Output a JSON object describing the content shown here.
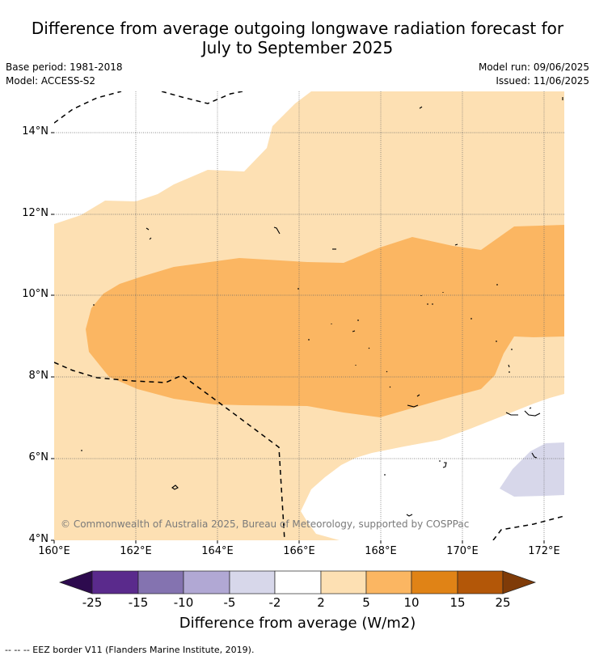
{
  "title": {
    "line1": "Difference from average outgoing longwave radiation forecast for",
    "line2": "July to September 2025"
  },
  "meta": {
    "base_period": "Base period: 1981-2018",
    "model": "Model: ACCESS-S2",
    "model_run": "Model run: 09/06/2025",
    "issued": "Issued: 11/06/2025"
  },
  "map": {
    "latitude_labels": [
      "14°N",
      "12°N",
      "10°N",
      "8°N",
      "6°N",
      "4°N"
    ],
    "longitude_labels": [
      "160°E",
      "162°E",
      "164°E",
      "166°E",
      "168°E",
      "170°E",
      "172°E"
    ],
    "longitude_range": [
      160,
      172.5
    ],
    "latitude_range": [
      4,
      15.1
    ],
    "copyright": "© Commonwealth of Australia 2025, Bureau of Meteorology, supported by COSPPac"
  },
  "colorbar": {
    "ticks": [
      "-25",
      "-15",
      "-10",
      "-5",
      "-2",
      "2",
      "5",
      "10",
      "15",
      "25"
    ],
    "colors": [
      "#2d0a4e",
      "#5a2a8c",
      "#8473b0",
      "#b1a8d4",
      "#d7d7ea",
      "#ffffff",
      "#fde0b3",
      "#fbb662",
      "#e08316",
      "#b35708",
      "#7f3b08"
    ],
    "title": "Difference from average (W/m2)"
  },
  "legend_footnote": "--  --  -- EEZ border V11 (Flanders Marine Institute, 2019)."
}
